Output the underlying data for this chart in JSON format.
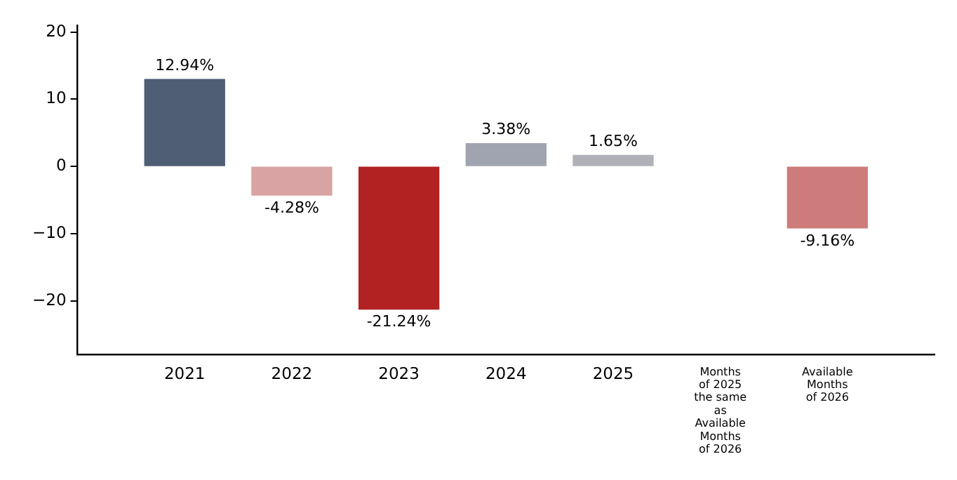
{
  "chart_data": {
    "type": "bar",
    "categories": [
      "2021",
      "2022",
      "2023",
      "2024",
      "2025",
      "Months of 2025 the same as Available Months of 2026",
      "Available Months of 2026"
    ],
    "values": [
      12.94,
      -4.28,
      -21.24,
      3.38,
      1.65,
      null,
      -9.16
    ],
    "colors": [
      "#4f5d75",
      "#d9a3a3",
      "#b22222",
      "#a0a4b0",
      "#b0b0b8",
      "#b0b0b8",
      "#cd7b7b"
    ],
    "value_labels": [
      "12.94%",
      "-4.28%",
      "-21.24%",
      "3.38%",
      "1.65%",
      null,
      "-9.16%"
    ],
    "ylim": [
      -28,
      21
    ],
    "yticks": [
      {
        "value": -20,
        "label": "−20"
      },
      {
        "value": -10,
        "label": "−10"
      },
      0,
      10,
      20
    ],
    "grid": false,
    "legend": false
  }
}
